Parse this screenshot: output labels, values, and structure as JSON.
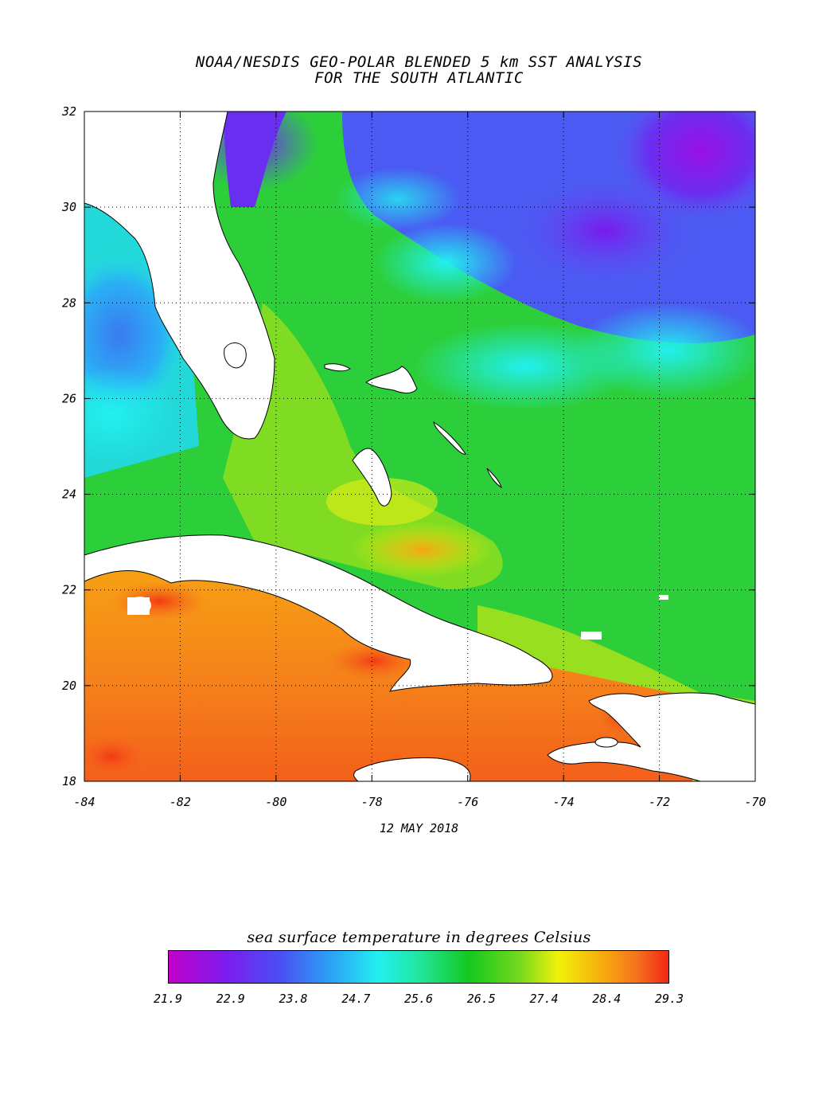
{
  "header": {
    "title_line1": "NOAA/NESDIS GEO-POLAR BLENDED 5 km SST ANALYSIS",
    "title_line2": "FOR THE SOUTH ATLANTIC"
  },
  "map": {
    "lon_range": [
      -84,
      -70
    ],
    "lat_range": [
      18,
      32
    ],
    "x_ticks": [
      "-84",
      "-82",
      "-80",
      "-78",
      "-76",
      "-74",
      "-72",
      "-70"
    ],
    "y_ticks": [
      "32",
      "30",
      "28",
      "26",
      "24",
      "22",
      "20",
      "18"
    ],
    "gridlines": true,
    "date": "12 MAY 2018"
  },
  "colorbar": {
    "title": "sea surface temperature in degrees Celsius",
    "labels": [
      "21.9",
      "22.9",
      "23.8",
      "24.7",
      "25.6",
      "26.5",
      "27.4",
      "28.4",
      "29.3"
    ],
    "colors": [
      "#c000c8",
      "#7a1ef0",
      "#4a4ef2",
      "#2aa6f5",
      "#22f0ef",
      "#22e6a0",
      "#14c81e",
      "#72d81e",
      "#f2f20a",
      "#f6b20e",
      "#f5701e",
      "#f02814"
    ]
  }
}
